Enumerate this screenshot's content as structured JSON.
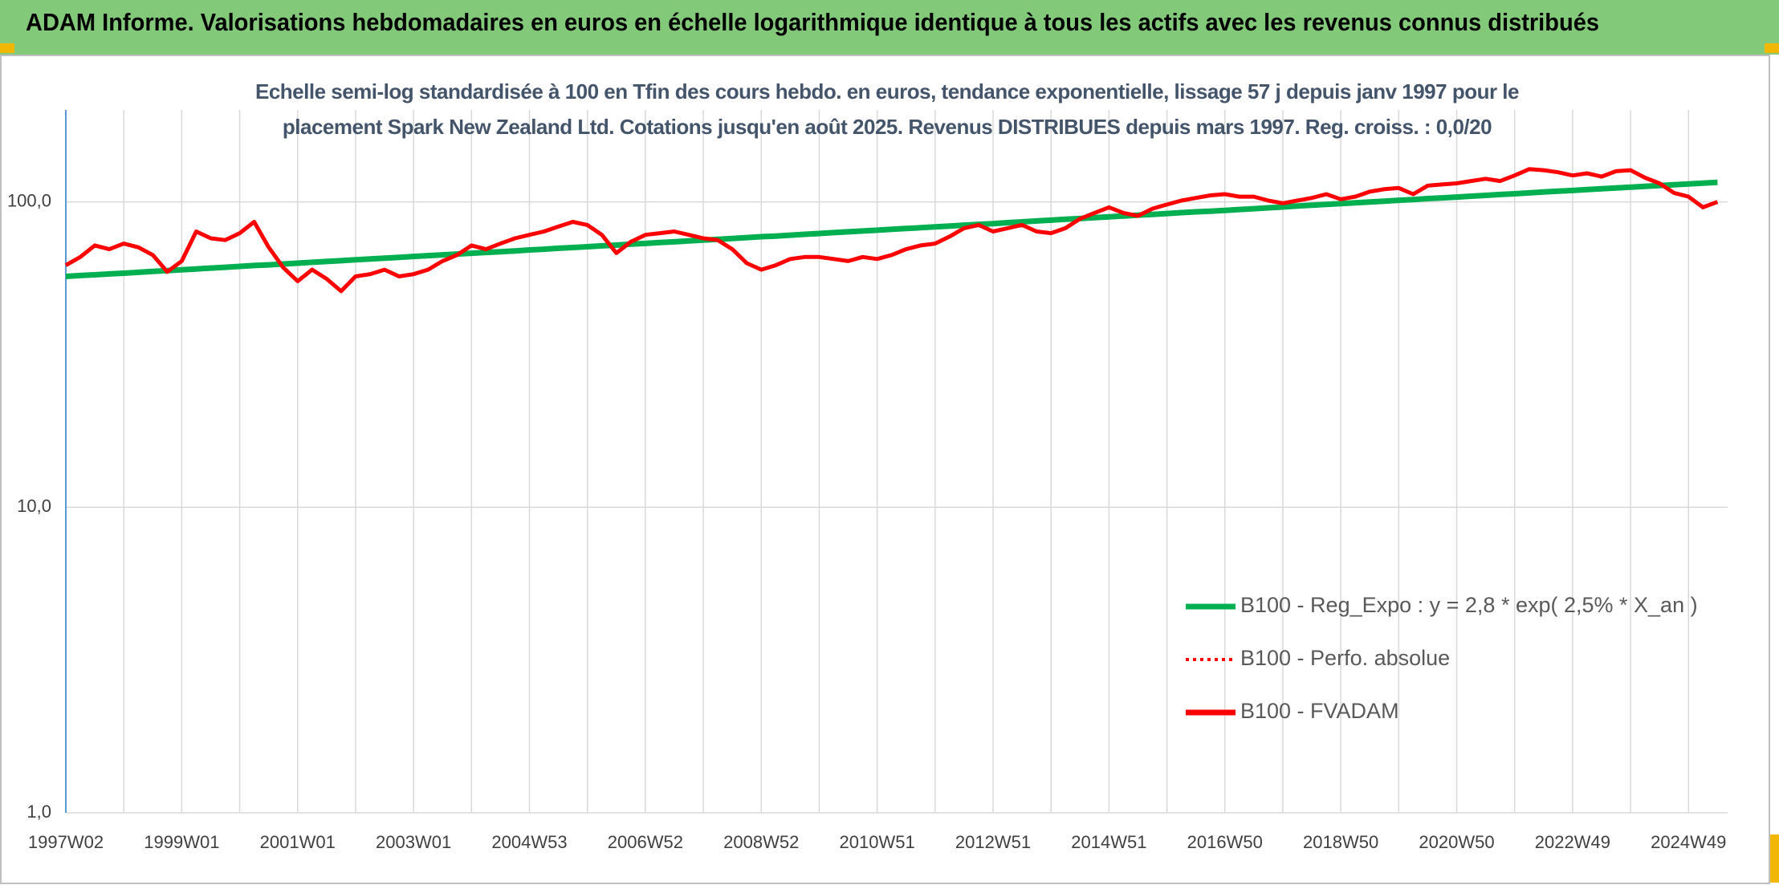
{
  "header": {
    "title": "ADAM Informe. Valorisations hebdomadaires en euros en échelle logarithmique identique à tous les actifs avec les revenus connus distribués"
  },
  "chart_data": {
    "type": "line",
    "subtitle": "Echelle semi-log standardisée à 100 en Tfin des cours hebdo. en euros, tendance exponentielle, lissage 57 j depuis janv 1997 pour le placement Spark New Zealand Ltd. Cotations jusqu'en août 2025. Revenus DISTRIBUES depuis mars 1997. Reg. croiss. : 0,0/20",
    "categories": [
      "1997W02",
      null,
      null,
      null,
      null,
      null,
      null,
      null,
      "1999W01",
      null,
      null,
      null,
      null,
      null,
      null,
      null,
      "2001W01",
      null,
      null,
      null,
      null,
      null,
      null,
      null,
      "2003W01",
      null,
      null,
      null,
      null,
      null,
      null,
      null,
      "2004W53",
      null,
      null,
      null,
      null,
      null,
      null,
      null,
      "2006W52",
      null,
      null,
      null,
      null,
      null,
      null,
      null,
      "2008W52",
      null,
      null,
      null,
      null,
      null,
      null,
      null,
      "2010W51",
      null,
      null,
      null,
      null,
      null,
      null,
      null,
      "2012W51",
      null,
      null,
      null,
      null,
      null,
      null,
      null,
      "2014W51",
      null,
      null,
      null,
      null,
      null,
      null,
      null,
      "2016W50",
      null,
      null,
      null,
      null,
      null,
      null,
      null,
      "2018W50",
      null,
      null,
      null,
      null,
      null,
      null,
      null,
      "2020W50",
      null,
      null,
      null,
      null,
      null,
      null,
      null,
      "2022W49",
      null,
      null,
      null,
      null,
      null,
      null,
      null,
      "2024W49",
      null,
      null
    ],
    "yscale": "log",
    "ylim": [
      1,
      200
    ],
    "yticks": [
      {
        "value": 1,
        "label": "1,0"
      },
      {
        "value": 10,
        "label": "10,0"
      },
      {
        "value": 100,
        "label": "100,0"
      }
    ],
    "grid": true,
    "legend_position": "right",
    "series": [
      {
        "name": "B100 - Reg_Expo : y = 2,8 * exp( 2,5% *  X_an )",
        "color": "#00b050",
        "style": "solid",
        "values": [
          57.0,
          57.4,
          57.7,
          58.1,
          58.4,
          58.8,
          59.2,
          59.6,
          59.9,
          60.3,
          60.7,
          61.1,
          61.5,
          61.9,
          62.2,
          62.6,
          63.0,
          63.4,
          63.8,
          64.2,
          64.6,
          65.0,
          65.4,
          65.8,
          66.3,
          66.7,
          67.1,
          67.5,
          67.9,
          68.3,
          68.7,
          69.1,
          69.6,
          70.0,
          70.5,
          70.9,
          71.3,
          71.8,
          72.2,
          72.7,
          73.1,
          73.6,
          74.0,
          74.5,
          75.0,
          75.4,
          75.9,
          76.4,
          76.9,
          77.3,
          77.8,
          78.3,
          78.8,
          79.3,
          79.8,
          80.3,
          80.8,
          81.3,
          81.8,
          82.3,
          82.8,
          83.3,
          83.9,
          84.4,
          84.9,
          85.5,
          86.0,
          86.6,
          87.1,
          87.7,
          88.2,
          88.8,
          89.3,
          89.9,
          90.5,
          91.0,
          91.6,
          92.2,
          92.8,
          93.2,
          93.8,
          94.4,
          95.0,
          95.6,
          96.2,
          96.9,
          97.5,
          98.1,
          98.7,
          99.3,
          99.9,
          100.5,
          101.2,
          101.8,
          102.5,
          103.1,
          103.7,
          104.4,
          105.0,
          105.7,
          106.3,
          107.0,
          107.7,
          108.4,
          109.0,
          109.7,
          110.4,
          111.1,
          111.7,
          112.4,
          113.1,
          113.8,
          114.5,
          115.2,
          115.9
        ]
      },
      {
        "name": "B100 - Perfo. absolue",
        "color": "#ff0000",
        "style": "dotted",
        "values": [
          62,
          66,
          72,
          70,
          73,
          71,
          67,
          59,
          64,
          80,
          76,
          75,
          79,
          86,
          71,
          61,
          55,
          60,
          56,
          51,
          57,
          58,
          60,
          57,
          58,
          60,
          64,
          67,
          72,
          70,
          73,
          76,
          78,
          80,
          83,
          86,
          84,
          78,
          68,
          74,
          78,
          79,
          80,
          78,
          76,
          75,
          70,
          63,
          60,
          62,
          65,
          66,
          66,
          65,
          64,
          66,
          65,
          67,
          70,
          72,
          73,
          77,
          82,
          84,
          80,
          82,
          84,
          80,
          79,
          82,
          88,
          92,
          96,
          92,
          90,
          95,
          98,
          101,
          103,
          105,
          106,
          104,
          104,
          101,
          99,
          101,
          103,
          106,
          102,
          104,
          108,
          110,
          111,
          106,
          113,
          114,
          115,
          117,
          119,
          117,
          122,
          128,
          127,
          125,
          122,
          124,
          121,
          126,
          127,
          120,
          115,
          107,
          104,
          96,
          100
        ]
      },
      {
        "name": "B100 - FVADAM",
        "color": "#ff0000",
        "style": "solid",
        "values": [
          62,
          66,
          72,
          70,
          73,
          71,
          67,
          59,
          64,
          80,
          76,
          75,
          79,
          86,
          71,
          61,
          55,
          60,
          56,
          51,
          57,
          58,
          60,
          57,
          58,
          60,
          64,
          67,
          72,
          70,
          73,
          76,
          78,
          80,
          83,
          86,
          84,
          78,
          68,
          74,
          78,
          79,
          80,
          78,
          76,
          75,
          70,
          63,
          60,
          62,
          65,
          66,
          66,
          65,
          64,
          66,
          65,
          67,
          70,
          72,
          73,
          77,
          82,
          84,
          80,
          82,
          84,
          80,
          79,
          82,
          88,
          92,
          96,
          92,
          90,
          95,
          98,
          101,
          103,
          105,
          106,
          104,
          104,
          101,
          99,
          101,
          103,
          106,
          102,
          104,
          108,
          110,
          111,
          106,
          113,
          114,
          115,
          117,
          119,
          117,
          122,
          128,
          127,
          125,
          122,
          124,
          121,
          126,
          127,
          120,
          115,
          107,
          104,
          96,
          100
        ]
      }
    ]
  }
}
